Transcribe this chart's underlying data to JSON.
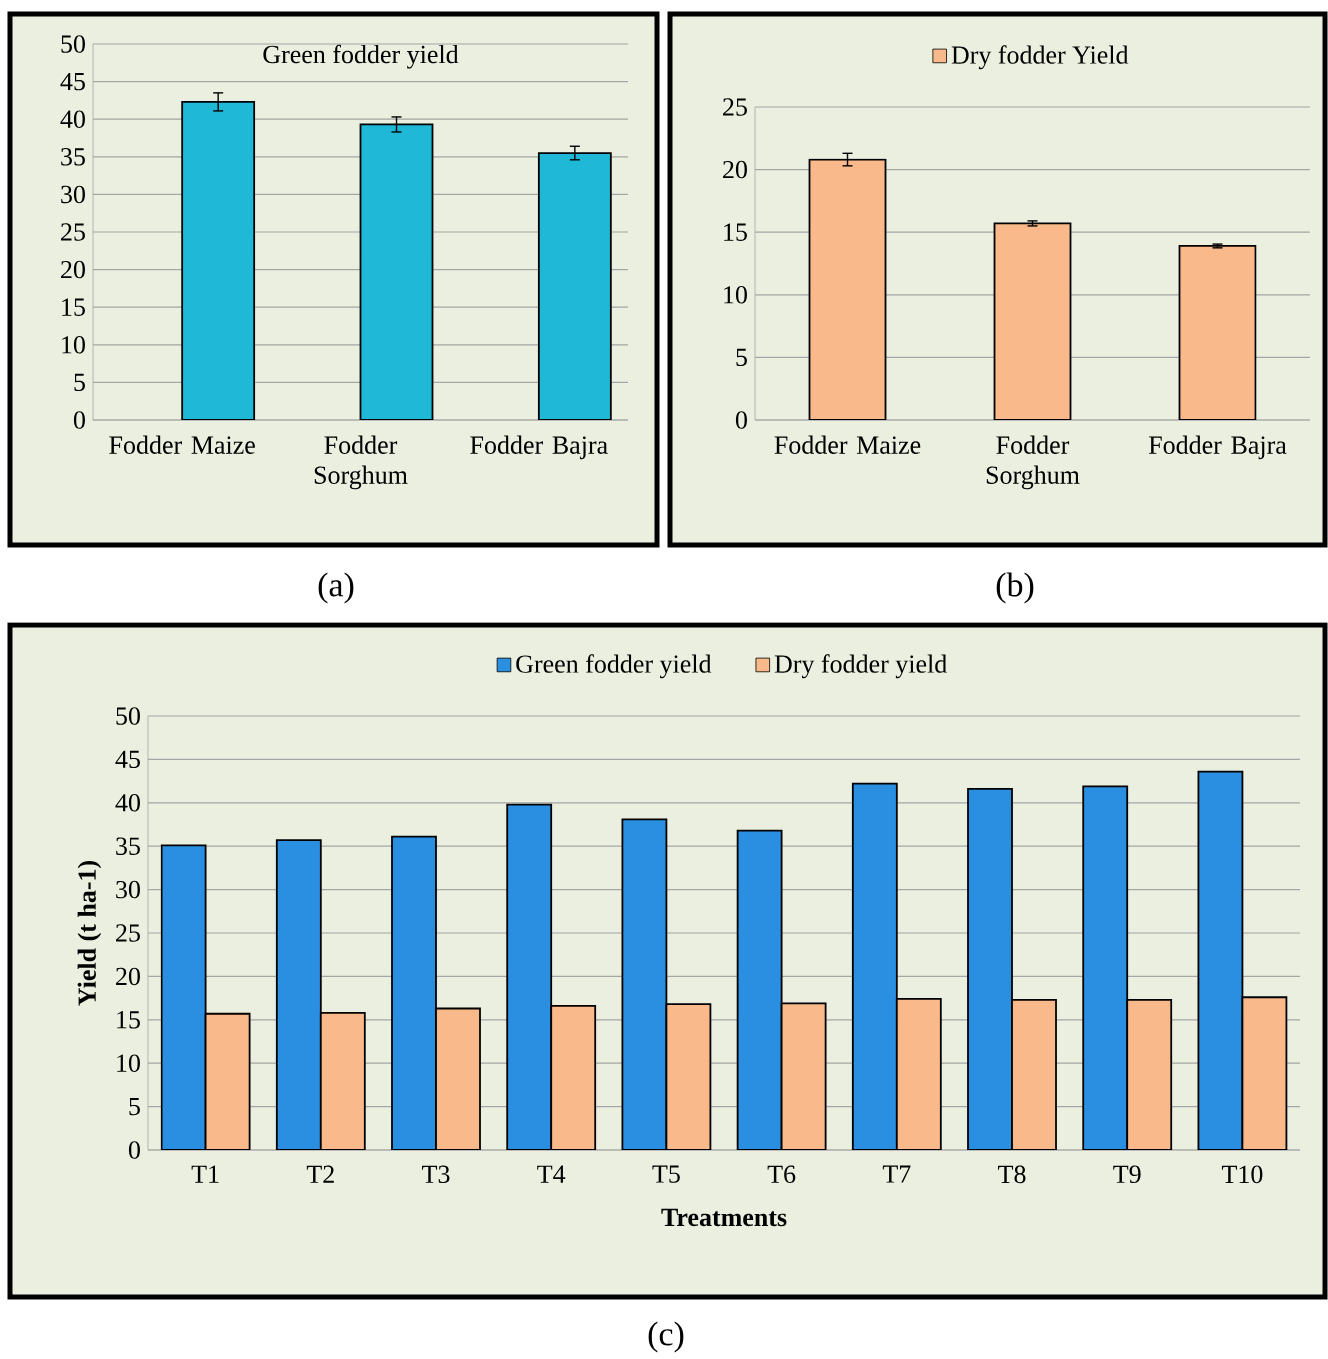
{
  "chart_data": [
    {
      "type": "bar",
      "title": "Green fodder yield",
      "categories": [
        "Fodder Maize",
        "Fodder Sorghum",
        "Fodder Bajra"
      ],
      "series": [
        {
          "color": "#1fb8d6",
          "values": [
            42.3,
            39.3,
            35.5
          ],
          "errors": [
            1.2,
            1.0,
            0.9
          ]
        }
      ],
      "ylim": [
        0,
        50
      ],
      "yticks": [
        0,
        5,
        10,
        15,
        20,
        25,
        30,
        35,
        40,
        45,
        50
      ],
      "grid": "y",
      "annotations": [
        "(a)"
      ]
    },
    {
      "type": "bar",
      "categories": [
        "Fodder Maize",
        "Fodder Sorghum",
        "Fodder Bajra"
      ],
      "series": [
        {
          "name": "Dry fodder Yield",
          "color": "#f9b98a",
          "values": [
            20.8,
            15.7,
            13.9
          ],
          "errors": [
            0.5,
            0.2,
            0.15
          ]
        }
      ],
      "ylim": [
        0,
        25
      ],
      "yticks": [
        0,
        5,
        10,
        15,
        20,
        25
      ],
      "grid": "y",
      "legend": "top",
      "annotations": [
        "(b)"
      ]
    },
    {
      "type": "bar",
      "xlabel": "Treatments",
      "ylabel": "Yield (t ha-1)",
      "categories": [
        "T1",
        "T2",
        "T3",
        "T4",
        "T5",
        "T6",
        "T7",
        "T8",
        "T9",
        "T10"
      ],
      "series": [
        {
          "name": "Green fodder yield",
          "color": "#2a8fe0",
          "values": [
            35.1,
            35.7,
            36.1,
            39.8,
            38.1,
            36.8,
            42.2,
            41.6,
            41.9,
            43.6
          ]
        },
        {
          "name": "Dry fodder yield",
          "color": "#f9b98a",
          "values": [
            15.7,
            15.8,
            16.3,
            16.6,
            16.8,
            16.9,
            17.4,
            17.3,
            17.3,
            17.6
          ]
        }
      ],
      "ylim": [
        0,
        50
      ],
      "yticks": [
        0,
        5,
        10,
        15,
        20,
        25,
        30,
        35,
        40,
        45,
        50
      ],
      "grid": "y",
      "legend": "top",
      "annotations": [
        "(c)"
      ]
    }
  ]
}
